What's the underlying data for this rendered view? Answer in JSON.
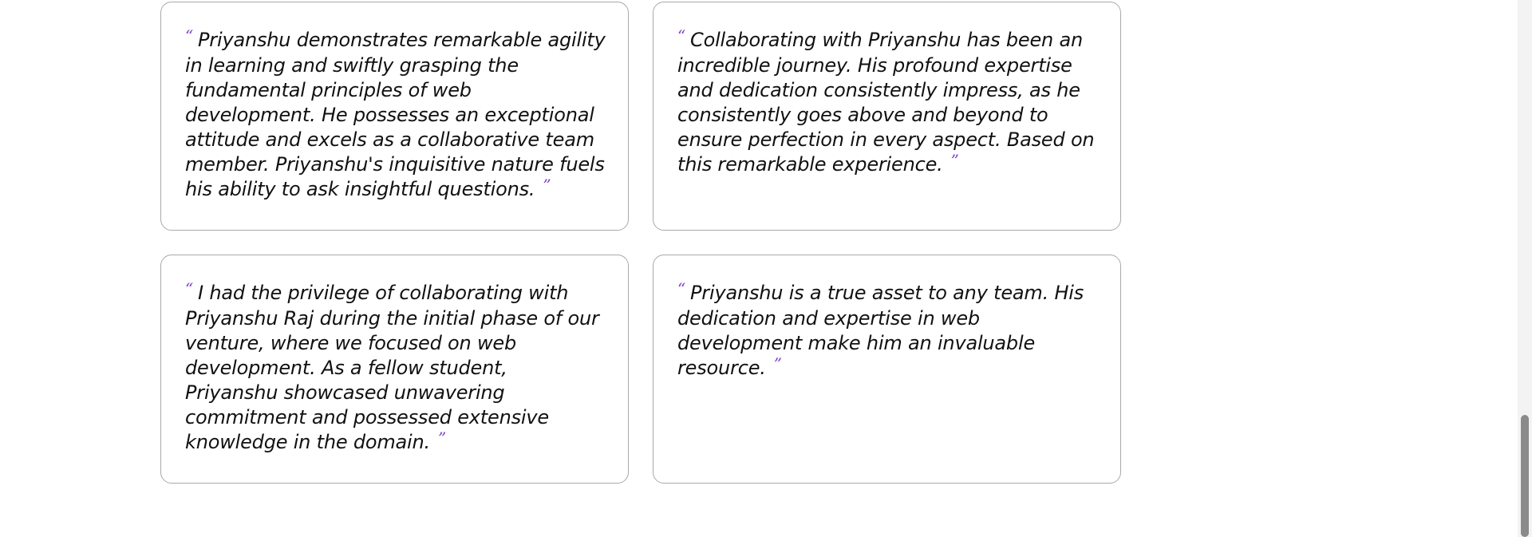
{
  "testimonials": [
    {
      "open_mark": "“",
      "text": "Priyanshu demonstrates remarkable agility in learning and swiftly grasping the fundamental principles of web development. He possesses an exceptional attitude and excels as a collaborative team member. Priyanshu's inquisitive nature fuels his ability to ask insightful questions.",
      "close_mark": "”"
    },
    {
      "open_mark": "“",
      "text": "Collaborating with Priyanshu has been an incredible journey. His profound expertise and dedication consistently impress, as he consistently goes above and beyond to ensure perfection in every aspect. Based on this remarkable experience.",
      "close_mark": "”"
    },
    {
      "open_mark": "“",
      "text": "I had the privilege of collaborating with Priyanshu Raj during the initial phase of our venture, where we focused on web development. As a fellow student, Priyanshu showcased unwavering commitment and possessed extensive knowledge in the domain.",
      "close_mark": "”"
    },
    {
      "open_mark": "“",
      "text": "Priyanshu is a true asset to any team. His dedication and expertise in web development make him an invaluable resource.",
      "close_mark": "”"
    }
  ],
  "colors": {
    "quote_mark": "#7e3fc9",
    "card_border": "#a9a9a9",
    "text": "#111111"
  }
}
